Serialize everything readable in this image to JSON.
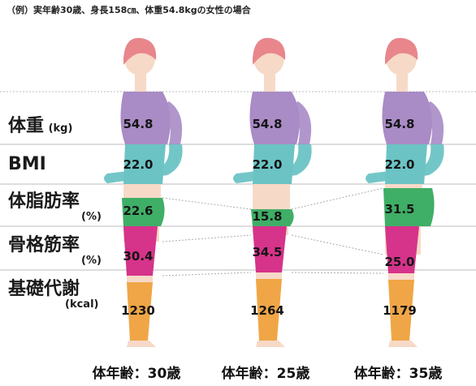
{
  "caption": "（例）実年齢30歳、身長158㎝、体重54.8kgの女性の場合",
  "rows": {
    "weight": {
      "label": "体重",
      "unit": "(kg)"
    },
    "bmi": {
      "label": "BMI",
      "unit": ""
    },
    "body_fat": {
      "label": "体脂肪率",
      "unit": "(%)"
    },
    "muscle": {
      "label": "骨格筋率",
      "unit": "(%)"
    },
    "metabolism": {
      "label": "基礎代謝",
      "unit": "(kcal)"
    }
  },
  "figures": [
    {
      "age_label": "体年齢：30歳",
      "weight": "54.8",
      "bmi": "22.0",
      "body_fat": "22.6",
      "muscle": "30.4",
      "metabolism": "1230"
    },
    {
      "age_label": "体年齢：25歳",
      "weight": "54.8",
      "bmi": "22.0",
      "body_fat": "15.8",
      "muscle": "34.5",
      "metabolism": "1264"
    },
    {
      "age_label": "体年齢：35歳",
      "weight": "54.8",
      "bmi": "22.0",
      "body_fat": "31.5",
      "muscle": "25.0",
      "metabolism": "1179"
    }
  ],
  "colors": {
    "skin": "#f7d9c8",
    "hair": "#e8868c",
    "weight_band": "#a98bc6",
    "bmi_band": "#6cc3c4",
    "fat_band": "#3fae66",
    "muscle_band": "#d6338a",
    "metabolism_band": "#f0a646",
    "divider": "#bbbbbb"
  }
}
